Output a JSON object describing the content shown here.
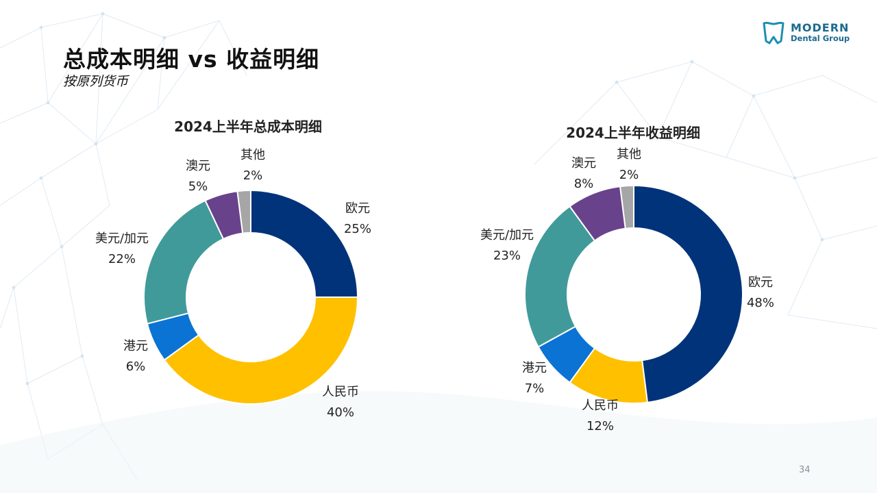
{
  "slide": {
    "title": "总成本明细 vs 收益明细",
    "subtitle": "按原列货币",
    "page_number": "34"
  },
  "logo": {
    "line1": "MODERN",
    "line2": "Dental Group"
  },
  "colors": {
    "accent": "#1b6b8f",
    "eur": "#00337a",
    "rmb": "#ffc000",
    "hkd": "#0b73d4",
    "usd_cad": "#419a9a",
    "aud": "#69428c",
    "other": "#a6a6a6"
  },
  "chart_data": [
    {
      "type": "pie",
      "title": "2024上半年总成本明细",
      "unit": "%",
      "slices": [
        {
          "label": "欧元",
          "value": 25,
          "display": "25%",
          "color": "#00337a"
        },
        {
          "label": "人民币",
          "value": 40,
          "display": "40%",
          "color": "#ffc000"
        },
        {
          "label": "港元",
          "value": 6,
          "display": "6%",
          "color": "#0b73d4"
        },
        {
          "label": "美元/加元",
          "value": 22,
          "display": "22%",
          "color": "#419a9a"
        },
        {
          "label": "澳元",
          "value": 5,
          "display": "5%",
          "color": "#69428c"
        },
        {
          "label": "其他",
          "value": 2,
          "display": "2%",
          "color": "#a6a6a6"
        }
      ]
    },
    {
      "type": "pie",
      "title": "2024上半年收益明细",
      "unit": "%",
      "slices": [
        {
          "label": "欧元",
          "value": 48,
          "display": "48%",
          "color": "#00337a"
        },
        {
          "label": "人民币",
          "value": 12,
          "display": "12%",
          "color": "#ffc000"
        },
        {
          "label": "港元",
          "value": 7,
          "display": "7%",
          "color": "#0b73d4"
        },
        {
          "label": "美元/加元",
          "value": 23,
          "display": "23%",
          "color": "#419a9a"
        },
        {
          "label": "澳元",
          "value": 8,
          "display": "8%",
          "color": "#69428c"
        },
        {
          "label": "其他",
          "value": 2,
          "display": "2%",
          "color": "#a6a6a6"
        }
      ]
    }
  ]
}
